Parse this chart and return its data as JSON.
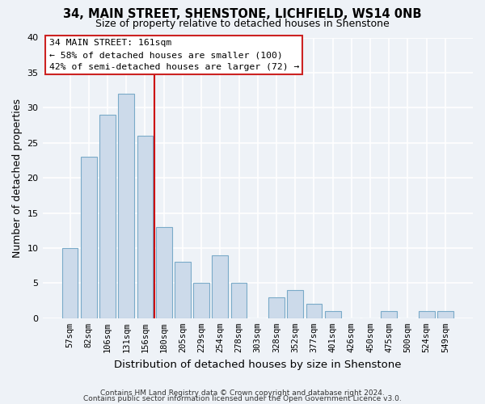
{
  "title": "34, MAIN STREET, SHENSTONE, LICHFIELD, WS14 0NB",
  "subtitle": "Size of property relative to detached houses in Shenstone",
  "xlabel": "Distribution of detached houses by size in Shenstone",
  "ylabel": "Number of detached properties",
  "bar_color": "#ccdaea",
  "bar_edgecolor": "#7aaac8",
  "vline_color": "#cc0000",
  "annotation_title": "34 MAIN STREET: 161sqm",
  "annotation_line1": "← 58% of detached houses are smaller (100)",
  "annotation_line2": "42% of semi-detached houses are larger (72) →",
  "categories": [
    "57sqm",
    "82sqm",
    "106sqm",
    "131sqm",
    "156sqm",
    "180sqm",
    "205sqm",
    "229sqm",
    "254sqm",
    "278sqm",
    "303sqm",
    "328sqm",
    "352sqm",
    "377sqm",
    "401sqm",
    "426sqm",
    "450sqm",
    "475sqm",
    "500sqm",
    "524sqm",
    "549sqm"
  ],
  "values": [
    10,
    23,
    29,
    32,
    26,
    13,
    8,
    5,
    9,
    5,
    0,
    3,
    4,
    2,
    1,
    0,
    0,
    1,
    0,
    1,
    1
  ],
  "ylim": [
    0,
    40
  ],
  "yticks": [
    0,
    5,
    10,
    15,
    20,
    25,
    30,
    35,
    40
  ],
  "footer1": "Contains HM Land Registry data © Crown copyright and database right 2024.",
  "footer2": "Contains public sector information licensed under the Open Government Licence v3.0.",
  "background_color": "#eef2f7",
  "grid_color": "#ffffff"
}
